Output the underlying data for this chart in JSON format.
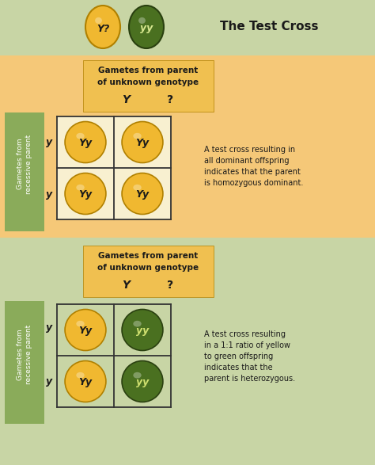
{
  "title": "The Test Cross",
  "bg_outer": "#c8d5a5",
  "bg_top_panel": "#f5c878",
  "bg_bottom_panel": "#c8d5a5",
  "bg_green_label": "#8aab5a",
  "bg_yellow_header": "#f0c050",
  "yellow_circle_color": "#f0b830",
  "yellow_circle_grad": "#f8d860",
  "green_circle_color": "#4a7020",
  "green_circle_grad": "#6a9040",
  "yellow_circle_edge": "#b08000",
  "green_circle_edge": "#2a4010",
  "text_color": "#1a1a1a",
  "white_text": "#ffffff",
  "top_panel_text1": "Gametes from parent",
  "top_panel_text2": "of unknown genotype",
  "top_panel_Y": "Y",
  "top_panel_Q": "?",
  "y_label": "y",
  "top_right_text": "A test cross resulting in\nall dominant offspring\nindicates that the parent\nis homozygous dominant.",
  "bottom_right_text": "A test cross resulting\nin a 1:1 ratio of yellow\nto green offspring\nindicates that the\nparent is heterozygous.",
  "top_grid": [
    [
      "Yy",
      "Yy"
    ],
    [
      "Yy",
      "Yy"
    ]
  ],
  "bottom_grid": [
    [
      "Yy",
      "yy"
    ],
    [
      "Yy",
      "yy"
    ]
  ],
  "top_grid_colors": [
    [
      "yellow",
      "yellow"
    ],
    [
      "yellow",
      "yellow"
    ]
  ],
  "bottom_grid_colors": [
    [
      "yellow",
      "green"
    ],
    [
      "yellow",
      "green"
    ]
  ],
  "header_circle_left_label": "Y?",
  "header_circle_right_label": "yy",
  "side_label_text": "Gametes from\nrecessive parent"
}
